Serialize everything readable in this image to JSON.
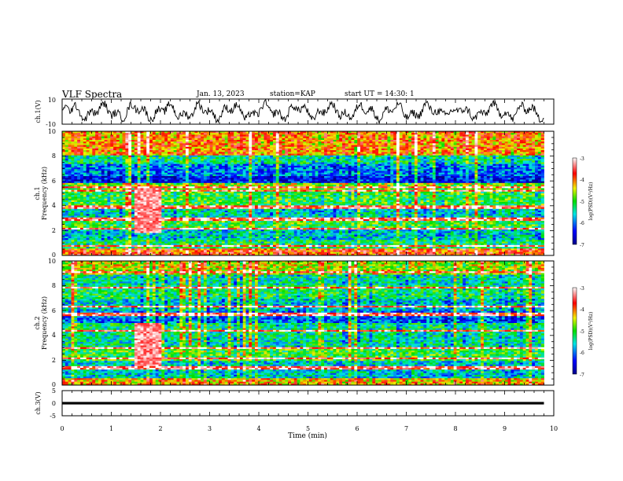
{
  "header": {
    "title": "VLF Spectra",
    "date": "Jan. 13, 2023",
    "station": "station=KAP",
    "start": "start UT =  14:30: 1"
  },
  "chart_data": [
    {
      "type": "line",
      "name": "ch1-waveform",
      "ylabel": "ch.1(V)",
      "ylim": [
        -10,
        10
      ],
      "yticks": [
        "10",
        "-10"
      ],
      "xlim": [
        0,
        10
      ],
      "trend": "noisy oscillation between about -9 and +9 V with larger swings near 1, 2.5 and 9.5 min; quieter between 7.5 and 8.3 min"
    },
    {
      "type": "heatmap",
      "name": "ch1-spectrogram",
      "ylabel": "ch.1",
      "ylabel2": "Frequency (kHz)",
      "ylim": [
        0,
        10
      ],
      "yticks": [
        "0",
        "2",
        "4",
        "6",
        "8",
        "10"
      ],
      "xlim": [
        0,
        10
      ],
      "data_xmax": 9.8,
      "colorbar": {
        "label": "log(PSD)(V²/Hz)",
        "range": [
          -7,
          -3
        ],
        "ticks": [
          "-3",
          "-4",
          "-5",
          "-6",
          "-7"
        ]
      },
      "bands": [
        {
          "freq_khz": [
            8.0,
            10.0
          ],
          "level": -4.0
        },
        {
          "freq_khz": [
            7.4,
            8.0
          ],
          "level": -5.3
        },
        {
          "freq_khz": [
            6.4,
            7.4
          ],
          "level": -5.9
        },
        {
          "freq_khz": [
            5.9,
            6.4
          ],
          "level": -6.4
        },
        {
          "freq_khz": [
            5.3,
            5.9
          ],
          "level": -4.6
        },
        {
          "freq_khz": [
            4.6,
            5.3
          ],
          "level": -5.0
        },
        {
          "freq_khz": [
            3.7,
            4.6
          ],
          "level": -5.0
        },
        {
          "freq_khz": [
            2.9,
            3.7
          ],
          "level": -5.5
        },
        {
          "freq_khz": [
            2.1,
            2.9
          ],
          "level": -5.0
        },
        {
          "freq_khz": [
            1.3,
            2.1
          ],
          "level": -5.6
        },
        {
          "freq_khz": [
            0.5,
            1.3
          ],
          "level": -5.2
        },
        {
          "freq_khz": [
            0.0,
            0.5
          ],
          "level": -3.8
        }
      ],
      "lines_khz": [
        0.8,
        2.2,
        2.9,
        3.9,
        5.2,
        5.5
      ],
      "burst": {
        "t_min": [
          1.45,
          2.05
        ],
        "freq_khz": [
          1.8,
          5.4
        ],
        "level": -3.3
      }
    },
    {
      "type": "heatmap",
      "name": "ch2-spectrogram",
      "ylabel": "ch.2",
      "ylabel2": "Frequency (kHz)",
      "ylim": [
        0,
        10
      ],
      "yticks": [
        "0",
        "2",
        "4",
        "6",
        "8",
        "10"
      ],
      "xlim": [
        0,
        10
      ],
      "data_xmax": 9.8,
      "colorbar": {
        "label": "log(PSD)(V²/Hz)",
        "range": [
          -7,
          -3
        ],
        "ticks": [
          "-3",
          "-4",
          "-5",
          "-6",
          "-7"
        ]
      },
      "bands": [
        {
          "freq_khz": [
            8.9,
            10.0
          ],
          "level": -4.5
        },
        {
          "freq_khz": [
            8.0,
            8.9
          ],
          "level": -5.4
        },
        {
          "freq_khz": [
            7.0,
            8.0
          ],
          "level": -5.2
        },
        {
          "freq_khz": [
            6.0,
            7.0
          ],
          "level": -5.6
        },
        {
          "freq_khz": [
            5.0,
            6.0
          ],
          "level": -6.0
        },
        {
          "freq_khz": [
            4.0,
            5.0
          ],
          "level": -5.3
        },
        {
          "freq_khz": [
            3.0,
            4.0
          ],
          "level": -5.4
        },
        {
          "freq_khz": [
            2.0,
            3.0
          ],
          "level": -5.0
        },
        {
          "freq_khz": [
            0.5,
            2.0
          ],
          "level": -5.6
        },
        {
          "freq_khz": [
            0.0,
            0.5
          ],
          "level": -4.2
        }
      ],
      "lines_khz": [
        1.4,
        2.2,
        3.0,
        4.4,
        5.7,
        6.3,
        7.8,
        9.1
      ],
      "burst": {
        "t_min": [
          1.45,
          2.05
        ],
        "freq_khz": [
          1.5,
          5.0
        ],
        "level": -3.3
      }
    },
    {
      "type": "line",
      "name": "ch3-waveform",
      "ylabel": "ch.3(V)",
      "ylim": [
        -5,
        5
      ],
      "yticks": [
        "5",
        "0",
        "-5"
      ],
      "xlim": [
        0,
        10
      ],
      "value_min": -0.5,
      "value_max": 0.5
    },
    {
      "type": "axis",
      "name": "time-axis",
      "xlabel": "Time (min)",
      "xlim": [
        0,
        10
      ],
      "xticks": [
        "0",
        "1",
        "2",
        "3",
        "4",
        "5",
        "6",
        "7",
        "8",
        "9",
        "10"
      ]
    }
  ]
}
